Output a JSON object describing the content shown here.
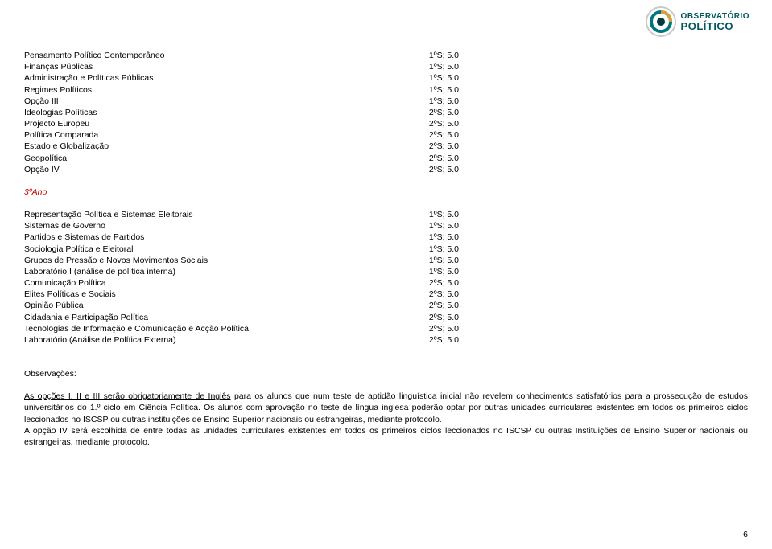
{
  "logo": {
    "line1": "OBSERVATÓRIO",
    "line2": "POLÍTICO",
    "icon_colors": {
      "outer_ring": "#c9c9c9",
      "mid_ring": "#00777e",
      "arc": "#d4a340",
      "center": "#003b40"
    }
  },
  "block1": [
    {
      "name": "Pensamento Político Contemporâneo",
      "code": "1ºS; 5.0"
    },
    {
      "name": "Finanças Públicas",
      "code": "1ºS; 5.0"
    },
    {
      "name": "Administração e Políticas Públicas",
      "code": "1ºS; 5.0"
    },
    {
      "name": "Regimes Políticos",
      "code": "1ºS; 5.0"
    },
    {
      "name": "Opção III",
      "code": "1ºS; 5.0"
    },
    {
      "name": "Ideologias Políticas",
      "code": "2ºS; 5.0"
    },
    {
      "name": "Projecto Europeu",
      "code": "2ºS; 5.0"
    },
    {
      "name": "Política Comparada",
      "code": "2ºS; 5.0"
    },
    {
      "name": "Estado e Globalização",
      "code": "2ºS; 5.0"
    },
    {
      "name": "Geopolítica",
      "code": "2ºS; 5.0"
    },
    {
      "name": "Opção IV",
      "code": "2ºS; 5.0"
    }
  ],
  "year3_heading": "3ºAno",
  "block2": [
    {
      "name": "Representação Política e Sistemas Eleitorais",
      "code": "1ºS; 5.0"
    },
    {
      "name": "Sistemas de Governo",
      "code": "1ºS; 5.0"
    },
    {
      "name": "Partidos e Sistemas de Partidos",
      "code": "1ºS; 5.0"
    },
    {
      "name": "Sociologia Política e Eleitoral",
      "code": "1ºS; 5.0"
    },
    {
      "name": "Grupos de Pressão e Novos Movimentos Sociais",
      "code": "1ºS; 5.0"
    },
    {
      "name": "Laboratório I (análise de política interna)",
      "code": "1ºS; 5.0"
    },
    {
      "name": "Comunicação Política",
      "code": "2ºS; 5.0"
    },
    {
      "name": "Elites Políticas e Sociais",
      "code": "2ºS; 5.0"
    },
    {
      "name": "Opinião Pública",
      "code": "2ºS; 5.0"
    },
    {
      "name": "Cidadania e Participação Política",
      "code": "2ºS; 5.0"
    },
    {
      "name": "Tecnologias de Informação e Comunicação e Acção Política",
      "code": "2ºS; 5.0"
    },
    {
      "name": "Laboratório (Análise de Política Externa)",
      "code": "2ºS; 5.0"
    }
  ],
  "obs": {
    "title": "Observações:",
    "underlined_intro": "As opções I, II e III serão obrigatoriamente de Inglês",
    "body_rest_1": " para os alunos que num teste de aptidão linguística inicial não revelem conhecimentos satisfatórios para a prossecução de estudos universitários do 1.º ciclo em Ciência Política. Os alunos com aprovação no teste de língua inglesa poderão optar por outras unidades curriculares existentes em todos os primeiros ciclos leccionados no ISCSP ou outras instituições de Ensino Superior nacionais ou estrangeiras, mediante protocolo.",
    "body_2": "A opção IV será escolhida de entre todas as unidades curriculares existentes em todos os primeiros ciclos leccionados no ISCSP ou outras Instituições de Ensino Superior nacionais ou estrangeiras, mediante protocolo."
  },
  "page_number": "6"
}
